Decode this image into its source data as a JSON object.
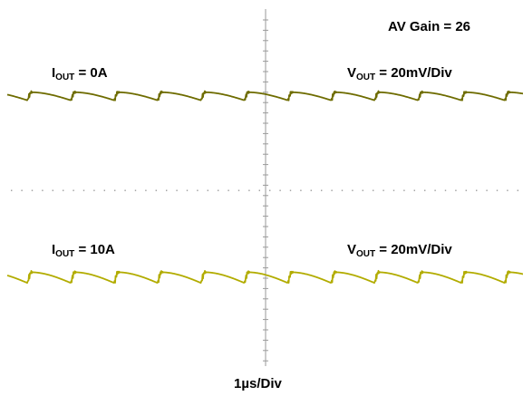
{
  "annotations": {
    "gain": "AV Gain = 26",
    "top_iout_prefix": "I",
    "top_iout_sub": "OUT",
    "top_iout_value": " = 0A",
    "top_vout_prefix": "V",
    "top_vout_sub": "OUT",
    "top_vout_value": " = 20mV/Div",
    "bottom_iout_prefix": "I",
    "bottom_iout_sub": "OUT",
    "bottom_iout_value": " = 10A",
    "bottom_vout_prefix": "V",
    "bottom_vout_sub": "OUT",
    "bottom_vout_value": " = 20mV/Div",
    "timebase": "1µs/Div"
  },
  "colors": {
    "trace_top": "#6e6c00",
    "trace_bottom": "#b2ac00",
    "grid": "#9a9a9a"
  },
  "chart_data": {
    "type": "line",
    "title": "",
    "xlabel": "1µs/Div",
    "ylabel": "",
    "grid": true,
    "x_unit": "µs",
    "y_unit": "mV",
    "time_per_division_us": 1,
    "voltage_per_division_mV": 20,
    "switching_period_us": 0.84,
    "series": [
      {
        "name": "IOUT = 0A",
        "waveform": "output voltage ripple",
        "ripple_peak_to_peak_mV": 6
      },
      {
        "name": "IOUT = 10A",
        "waveform": "output voltage ripple",
        "ripple_peak_to_peak_mV": 8
      }
    ]
  }
}
